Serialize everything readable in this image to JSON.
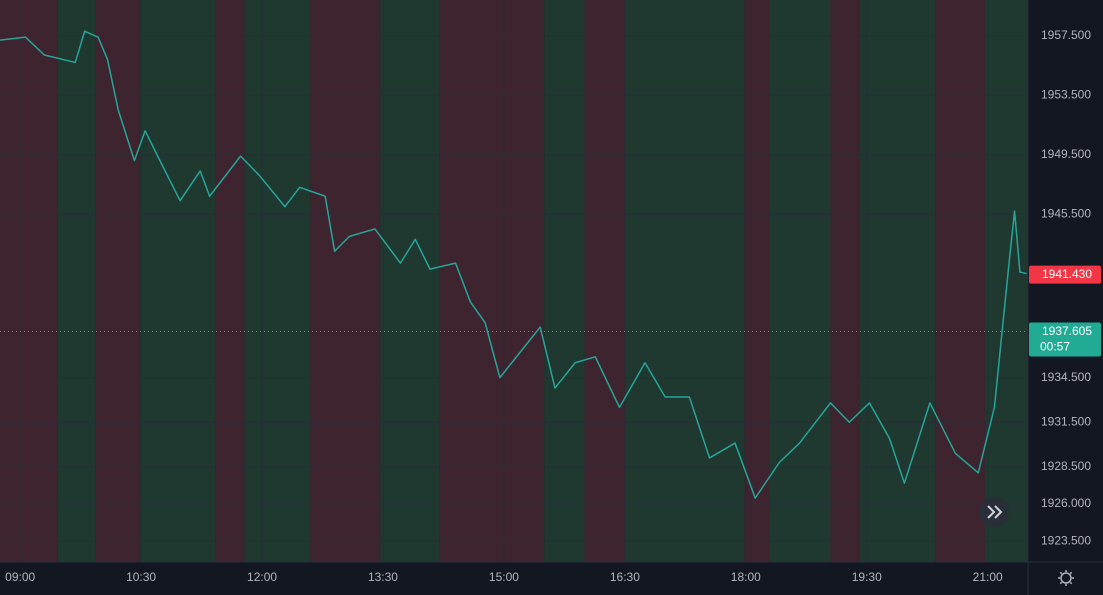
{
  "chart_data": {
    "type": "line",
    "x": [
      525,
      544,
      558,
      581,
      588,
      598,
      605,
      613,
      625,
      633,
      644,
      659,
      674,
      681,
      704,
      718,
      737,
      748,
      767,
      774,
      785,
      804,
      823,
      834,
      845,
      864,
      875,
      886,
      897,
      912,
      927,
      938,
      953,
      968,
      986,
      1005,
      1020,
      1038,
      1053,
      1072,
      1087,
      1105,
      1120,
      1143,
      1157,
      1172,
      1187,
      1198,
      1217,
      1236,
      1253,
      1265,
      1276,
      1280,
      1284,
      1289
    ],
    "values": [
      1957.2,
      1957.4,
      1956.2,
      1955.7,
      1957.8,
      1957.4,
      1955.9,
      1952.5,
      1949.1,
      1951.1,
      1949.1,
      1946.4,
      1948.4,
      1946.7,
      1949.4,
      1948.1,
      1946.0,
      1947.3,
      1946.7,
      1943.0,
      1944.0,
      1944.5,
      1942.2,
      1943.8,
      1941.8,
      1942.2,
      1939.6,
      1938.2,
      1934.5,
      1936.2,
      1937.9,
      1933.8,
      1935.5,
      1935.9,
      1932.5,
      1935.5,
      1933.2,
      1933.2,
      1929.1,
      1930.1,
      1926.4,
      1928.8,
      1930.1,
      1932.8,
      1931.5,
      1932.8,
      1930.4,
      1927.4,
      1932.8,
      1929.4,
      1928.1,
      1932.5,
      1942.3,
      1945.7,
      1941.6,
      1941.5
    ],
    "color": "#26a69a",
    "xlim": [
      525,
      1290
    ],
    "ylim": [
      1922.1,
      1959.9
    ],
    "xticks": [
      {
        "value": 540,
        "label": "09:00"
      },
      {
        "value": 630,
        "label": "10:30"
      },
      {
        "value": 720,
        "label": "12:00"
      },
      {
        "value": 810,
        "label": "13:30"
      },
      {
        "value": 900,
        "label": "15:00"
      },
      {
        "value": 990,
        "label": "16:30"
      },
      {
        "value": 1080,
        "label": "18:00"
      },
      {
        "value": 1170,
        "label": "19:30"
      },
      {
        "value": 1260,
        "label": "21:00"
      }
    ],
    "yticks": [
      {
        "value": 1957.5,
        "label": "1957.500"
      },
      {
        "value": 1953.5,
        "label": "1953.500"
      },
      {
        "value": 1949.5,
        "label": "1949.500"
      },
      {
        "value": 1945.5,
        "label": "1945.500"
      },
      {
        "value": 1934.5,
        "label": "1934.500"
      },
      {
        "value": 1931.5,
        "label": "1931.500"
      },
      {
        "value": 1928.5,
        "label": "1928.500"
      },
      {
        "value": 1926,
        "label": "1926.000"
      },
      {
        "value": 1923.5,
        "label": "1923.500"
      }
    ],
    "grid": true,
    "shading": {
      "edges": [
        525,
        568,
        596,
        629,
        685,
        707,
        756,
        808,
        852,
        930,
        960,
        990,
        1079,
        1098,
        1143,
        1165,
        1221,
        1258,
        1290
      ],
      "colors": [
        "#3d242e",
        "#1f3830",
        "#3d242e",
        "#1f3830",
        "#3d242e",
        "#1f3830",
        "#3d242e",
        "#1f3830",
        "#3d242e",
        "#1f3830",
        "#3d242e",
        "#1f3830",
        "#3d242e",
        "#1f3830",
        "#3d242e",
        "#1f3830",
        "#3d242e",
        "#1f3830"
      ]
    },
    "last_price": {
      "value": 1941.43,
      "label": "1941.430",
      "color": "#f23645"
    },
    "current_price": {
      "value": 1937.605,
      "label": "1937.605",
      "countdown": "00:57",
      "color": "#22ab94"
    }
  }
}
